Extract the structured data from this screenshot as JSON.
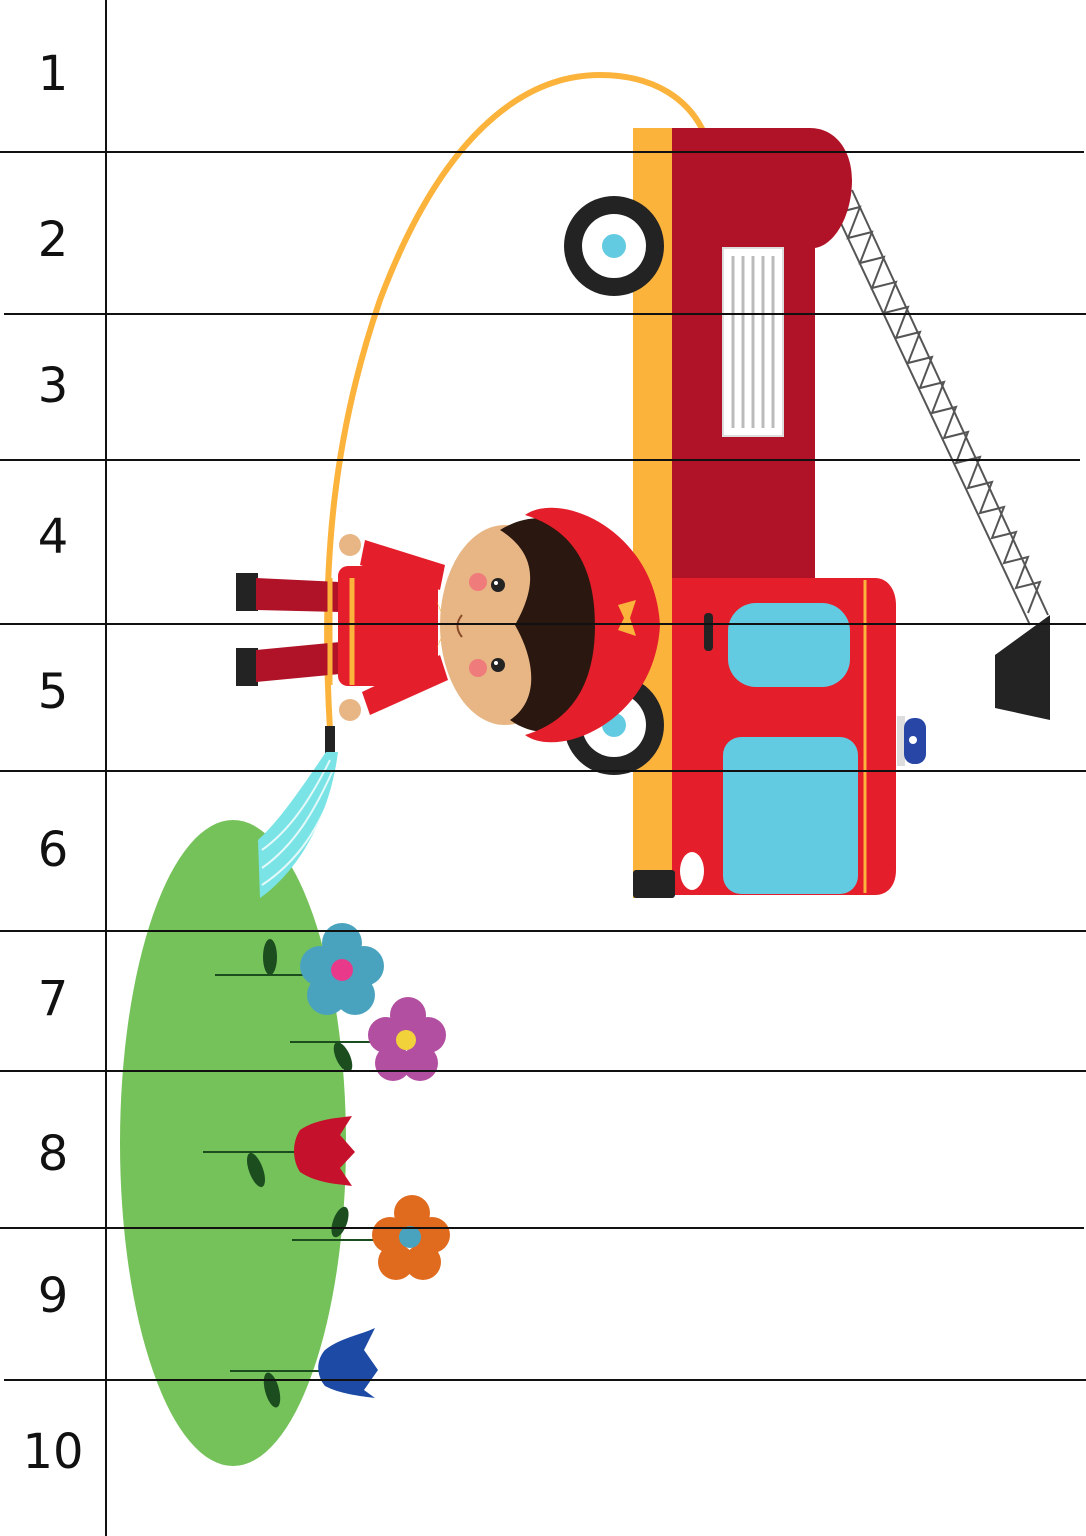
{
  "puzzle": {
    "strip_numbers": [
      "1",
      "2",
      "3",
      "4",
      "5",
      "6",
      "7",
      "8",
      "9",
      "10"
    ]
  },
  "colors": {
    "truck_red": "#b01327",
    "cab_red": "#e51e2b",
    "accent_yellow": "#fbb33c",
    "window_blue": "#62cbe1",
    "tire_black": "#232323",
    "grass_green": "#75c25a",
    "water_cyan": "#79e3e6",
    "helmet_red": "#e51e2b",
    "hair_brown": "#2a170f",
    "skin": "#e7b684"
  },
  "scene": {
    "subject": "firefighter-with-hose-and-fire-truck",
    "flowers": [
      "blue-flower",
      "pink-flower",
      "red-tulip",
      "orange-flower",
      "blue-tulip"
    ]
  }
}
